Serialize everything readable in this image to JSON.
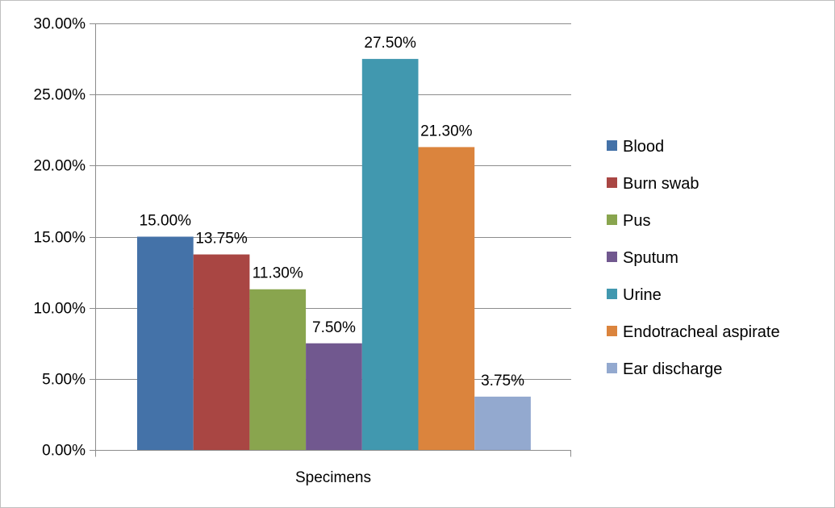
{
  "chart_data": {
    "type": "bar",
    "categories": [
      "Specimens"
    ],
    "series": [
      {
        "name": "Blood",
        "values": [
          15.0
        ],
        "label": "15.00%",
        "color": "#4472A8"
      },
      {
        "name": "Burn swab",
        "values": [
          13.75
        ],
        "label": "13.75%",
        "color": "#A94643"
      },
      {
        "name": "Pus",
        "values": [
          11.3
        ],
        "label": "11.30%",
        "color": "#89A54E"
      },
      {
        "name": "Sputum",
        "values": [
          7.5
        ],
        "label": "7.50%",
        "color": "#71588F"
      },
      {
        "name": "Urine",
        "values": [
          27.5
        ],
        "label": "27.50%",
        "color": "#4198AF"
      },
      {
        "name": "Endotracheal aspirate",
        "values": [
          21.3
        ],
        "label": "21.30%",
        "color": "#DB843D"
      },
      {
        "name": "Ear discharge",
        "values": [
          3.75
        ],
        "label": "3.75%",
        "color": "#93A9CF"
      }
    ],
    "y_ticks": [
      {
        "value": 0,
        "label": "0.00%"
      },
      {
        "value": 5,
        "label": "5.00%"
      },
      {
        "value": 10,
        "label": "10.00%"
      },
      {
        "value": 15,
        "label": "15.00%"
      },
      {
        "value": 20,
        "label": "20.00%"
      },
      {
        "value": 25,
        "label": "25.00%"
      },
      {
        "value": 30,
        "label": "30.00%"
      }
    ],
    "ylim": [
      0,
      30
    ],
    "grid": true,
    "legend": "right",
    "title": "",
    "xlabel": "",
    "ylabel": ""
  }
}
